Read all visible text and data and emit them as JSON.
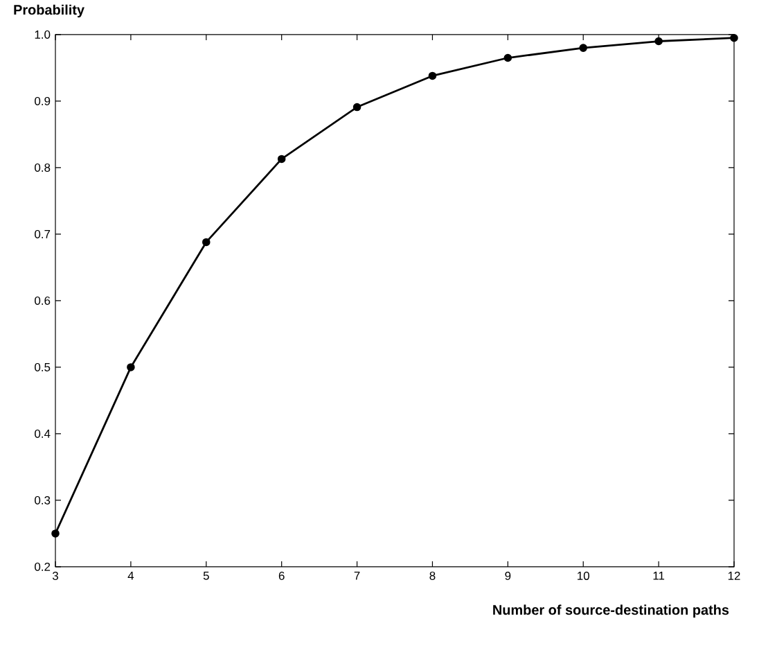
{
  "chart_data": {
    "type": "line",
    "ylabel": "Probability",
    "xlabel": "Number of source-destination paths",
    "x": [
      3,
      4,
      5,
      6,
      7,
      8,
      9,
      10,
      11,
      12
    ],
    "values": [
      0.25,
      0.5,
      0.688,
      0.813,
      0.891,
      0.938,
      0.965,
      0.98,
      0.99,
      0.995
    ],
    "color": "#000000",
    "marker": "circle",
    "line_style": "solid",
    "grid": false,
    "xlim": [
      3,
      12
    ],
    "ylim": [
      0.2,
      1.0
    ],
    "xticks": [
      3,
      4,
      5,
      6,
      7,
      8,
      9,
      10,
      11,
      12
    ],
    "yticks": [
      0.2,
      0.3,
      0.4,
      0.5,
      0.6,
      0.7,
      0.8,
      0.9,
      {
        "value": 1.0,
        "label": "1.0"
      }
    ]
  }
}
